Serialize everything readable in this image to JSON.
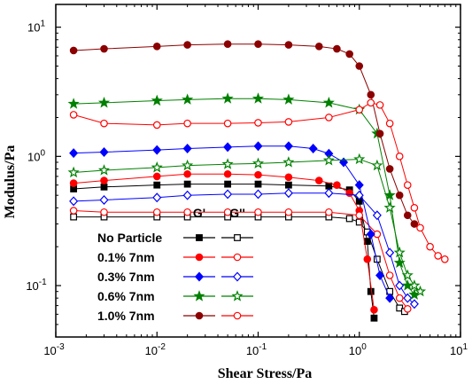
{
  "chart_data": {
    "type": "scatter",
    "xlabel": "Shear Stress/Pa",
    "ylabel": "Modulus/Pa",
    "xscale": "log",
    "yscale": "log",
    "xlim": [
      0.001,
      10
    ],
    "ylim": [
      0.04,
      15
    ],
    "x_ticks": [
      {
        "value": 0.001,
        "base": "10",
        "exp": "-3"
      },
      {
        "value": 0.01,
        "base": "10",
        "exp": "-2"
      },
      {
        "value": 0.1,
        "base": "10",
        "exp": "-1"
      },
      {
        "value": 1,
        "base": "10",
        "exp": "0"
      },
      {
        "value": 10,
        "base": "10",
        "exp": "1"
      }
    ],
    "y_ticks": [
      {
        "value": 0.1,
        "base": "10",
        "exp": "-1"
      },
      {
        "value": 1,
        "base": "10",
        "exp": "0"
      },
      {
        "value": 10,
        "base": "10",
        "exp": "1"
      }
    ],
    "legend": {
      "placement": "bottom-left",
      "headers": [
        "G'",
        "G''"
      ],
      "rows": [
        "No Particle",
        "0.1% 7nm",
        "0.3% 7nm",
        "0.6% 7nm",
        "1.0% 7nm"
      ]
    },
    "series": [
      {
        "group": "No Particle",
        "modulus": "G'",
        "color": "#000000",
        "marker": "square",
        "filled": true,
        "x": [
          0.0015,
          0.003,
          0.01,
          0.02,
          0.05,
          0.1,
          0.2,
          0.5,
          0.8,
          1.0,
          1.2,
          1.3,
          1.4
        ],
        "y": [
          0.56,
          0.58,
          0.6,
          0.61,
          0.61,
          0.61,
          0.6,
          0.59,
          0.55,
          0.45,
          0.22,
          0.09,
          0.056
        ]
      },
      {
        "group": "No Particle",
        "modulus": "G''",
        "color": "#000000",
        "marker": "square",
        "filled": false,
        "x": [
          0.0015,
          0.003,
          0.01,
          0.02,
          0.05,
          0.1,
          0.2,
          0.5,
          0.8,
          1.0,
          1.2,
          1.5,
          2.0,
          2.5,
          2.8
        ],
        "y": [
          0.34,
          0.34,
          0.34,
          0.34,
          0.34,
          0.34,
          0.34,
          0.34,
          0.33,
          0.31,
          0.26,
          0.16,
          0.09,
          0.067,
          0.063
        ]
      },
      {
        "group": "0.1% 7nm",
        "modulus": "G'",
        "color": "#ff0000",
        "marker": "circle",
        "filled": true,
        "x": [
          0.0015,
          0.003,
          0.01,
          0.02,
          0.05,
          0.1,
          0.2,
          0.4,
          0.6,
          0.8,
          1.0,
          1.2,
          1.4
        ],
        "y": [
          0.62,
          0.65,
          0.7,
          0.73,
          0.73,
          0.72,
          0.69,
          0.65,
          0.6,
          0.52,
          0.38,
          0.16,
          0.065
        ]
      },
      {
        "group": "0.1% 7nm",
        "modulus": "G''",
        "color": "#ff0000",
        "marker": "circle",
        "filled": false,
        "x": [
          0.0015,
          0.003,
          0.01,
          0.02,
          0.05,
          0.1,
          0.2,
          0.5,
          1.0,
          1.5,
          2.0,
          2.5,
          3.0
        ],
        "y": [
          0.38,
          0.37,
          0.37,
          0.37,
          0.37,
          0.37,
          0.37,
          0.37,
          0.35,
          0.25,
          0.12,
          0.08,
          0.066
        ]
      },
      {
        "group": "0.3% 7nm",
        "modulus": "G'",
        "color": "#0000ff",
        "marker": "diamond",
        "filled": true,
        "x": [
          0.0015,
          0.003,
          0.01,
          0.02,
          0.05,
          0.1,
          0.2,
          0.35,
          0.5,
          0.7,
          1.0,
          1.3,
          1.6,
          2.0
        ],
        "y": [
          1.06,
          1.08,
          1.12,
          1.15,
          1.18,
          1.2,
          1.2,
          1.15,
          1.05,
          0.9,
          0.6,
          0.25,
          0.12,
          0.08
        ]
      },
      {
        "group": "0.3% 7nm",
        "modulus": "G''",
        "color": "#0000ff",
        "marker": "diamond",
        "filled": false,
        "x": [
          0.0015,
          0.003,
          0.01,
          0.02,
          0.05,
          0.1,
          0.2,
          0.5,
          1.0,
          1.5,
          2.0,
          2.5,
          3.0,
          3.5
        ],
        "y": [
          0.45,
          0.46,
          0.48,
          0.5,
          0.51,
          0.51,
          0.52,
          0.52,
          0.5,
          0.35,
          0.18,
          0.1,
          0.08,
          0.072
        ]
      },
      {
        "group": "0.6% 7nm",
        "modulus": "G'",
        "color": "#008000",
        "marker": "star",
        "filled": true,
        "x": [
          0.0015,
          0.003,
          0.01,
          0.02,
          0.05,
          0.1,
          0.2,
          0.5,
          1.0,
          1.5,
          2.0,
          2.5,
          3.0,
          3.5
        ],
        "y": [
          2.55,
          2.6,
          2.7,
          2.75,
          2.8,
          2.8,
          2.75,
          2.6,
          2.3,
          1.5,
          0.5,
          0.15,
          0.1,
          0.085
        ]
      },
      {
        "group": "0.6% 7nm",
        "modulus": "G''",
        "color": "#008000",
        "marker": "star",
        "filled": false,
        "x": [
          0.0015,
          0.003,
          0.01,
          0.02,
          0.05,
          0.1,
          0.2,
          0.5,
          1.0,
          1.5,
          2.0,
          2.5,
          3.0,
          3.5,
          4.0
        ],
        "y": [
          0.75,
          0.78,
          0.82,
          0.85,
          0.87,
          0.88,
          0.9,
          0.93,
          0.95,
          0.85,
          0.4,
          0.18,
          0.12,
          0.1,
          0.09
        ]
      },
      {
        "group": "1.0% 7nm",
        "modulus": "G'",
        "color": "#8b0000",
        "marker": "circle",
        "filled": true,
        "x": [
          0.0015,
          0.003,
          0.01,
          0.02,
          0.05,
          0.1,
          0.2,
          0.4,
          0.6,
          0.8,
          1.0,
          1.3,
          1.6,
          2.0,
          2.5,
          3.0,
          3.5
        ],
        "y": [
          6.6,
          6.8,
          7.1,
          7.3,
          7.4,
          7.4,
          7.3,
          7.1,
          6.8,
          6.2,
          5.0,
          3.0,
          1.5,
          0.8,
          0.5,
          0.35,
          0.3
        ]
      },
      {
        "group": "1.0% 7nm",
        "modulus": "G''",
        "color": "#ff0000",
        "marker": "circle",
        "filled": false,
        "x": [
          0.0015,
          0.003,
          0.01,
          0.02,
          0.05,
          0.1,
          0.2,
          0.5,
          1.0,
          1.3,
          1.6,
          2.0,
          2.5,
          3.0,
          3.5,
          4.0,
          5.0,
          6.0,
          7.0
        ],
        "y": [
          2.1,
          1.8,
          1.75,
          1.8,
          1.8,
          1.82,
          1.85,
          2.0,
          2.3,
          2.6,
          2.5,
          1.8,
          1.0,
          0.6,
          0.4,
          0.28,
          0.2,
          0.17,
          0.16
        ]
      }
    ]
  }
}
